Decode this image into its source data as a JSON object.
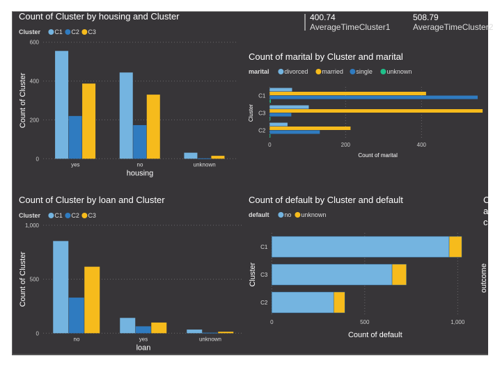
{
  "kpis": [
    {
      "value": "400.74",
      "label": "AverageTimeCluster1"
    },
    {
      "value": "508.79",
      "label": "AverageTimeCluster2"
    }
  ],
  "colors": {
    "C1": "#74b4e0",
    "C2": "#2f7bc0",
    "C3": "#f6bb1c",
    "divorced": "#74b4e0",
    "married": "#f6bb1c",
    "single": "#2f7bc0",
    "unknown": "#1fc08a",
    "no": "#74b4e0",
    "unknown_default": "#f6bb1c",
    "background": "#373538"
  },
  "partial_card": {
    "letters": [
      "C",
      "a",
      "c"
    ],
    "rotated": "outcome"
  },
  "chart_data": [
    {
      "type": "bar",
      "title": "Count of Cluster by housing and Cluster",
      "legend_title": "Cluster",
      "legend_position": "top-left",
      "xlabel": "housing",
      "ylabel": "Count of Cluster",
      "categories": [
        "yes",
        "no",
        "unknown"
      ],
      "ylim": [
        0,
        600
      ],
      "yticks": [
        0,
        200,
        400,
        600
      ],
      "ytick_labels": [
        "0",
        "200",
        "400",
        "600"
      ],
      "grid": true,
      "series": [
        {
          "name": "C1",
          "values": [
            555,
            444,
            31
          ]
        },
        {
          "name": "C2",
          "values": [
            220,
            173,
            2
          ]
        },
        {
          "name": "C3",
          "values": [
            387,
            330,
            15
          ]
        }
      ]
    },
    {
      "type": "bar",
      "orientation": "horizontal",
      "title": "Count of marital by Cluster and marital",
      "legend_title": "marital",
      "legend_position": "top-left",
      "xlabel": "Count of marital",
      "ylabel": "Cluster",
      "categories": [
        "C1",
        "C3",
        "C2"
      ],
      "xlim": [
        0,
        570
      ],
      "xticks": [
        0,
        200,
        400
      ],
      "xtick_labels": [
        "0",
        "200",
        "400"
      ],
      "grid": true,
      "series": [
        {
          "name": "divorced",
          "values": [
            59,
            103,
            47
          ]
        },
        {
          "name": "married",
          "values": [
            412,
            561,
            213
          ]
        },
        {
          "name": "single",
          "values": [
            548,
            57,
            132
          ]
        },
        {
          "name": "unknown",
          "values": [
            3,
            1,
            1
          ]
        }
      ]
    },
    {
      "type": "bar",
      "title": "Count of Cluster by loan and Cluster",
      "legend_title": "Cluster",
      "legend_position": "top-left",
      "xlabel": "loan",
      "ylabel": "Count of Cluster",
      "categories": [
        "no",
        "yes",
        "unknown"
      ],
      "ylim": [
        0,
        1000
      ],
      "yticks": [
        0,
        500,
        1000
      ],
      "ytick_labels": [
        "0",
        "500",
        "1,000"
      ],
      "grid": true,
      "series": [
        {
          "name": "C1",
          "values": [
            854,
            142,
            34
          ]
        },
        {
          "name": "C2",
          "values": [
            330,
            64,
            5
          ]
        },
        {
          "name": "C3",
          "values": [
            616,
            99,
            14
          ]
        }
      ]
    },
    {
      "type": "bar",
      "orientation": "horizontal",
      "stacked": true,
      "title": "Count of default by Cluster and default",
      "legend_title": "default",
      "legend_position": "top-left",
      "xlabel": "Count of default",
      "ylabel": "Cluster",
      "categories": [
        "C1",
        "C3",
        "C2"
      ],
      "xlim": [
        0,
        1000
      ],
      "xticks": [
        0,
        500,
        1000
      ],
      "xtick_labels": [
        "0",
        "500",
        "1,000"
      ],
      "grid": true,
      "series": [
        {
          "name": "no",
          "values": [
            954,
            647,
            333
          ]
        },
        {
          "name": "unknown",
          "values": [
            68,
            77,
            60
          ]
        }
      ]
    }
  ]
}
